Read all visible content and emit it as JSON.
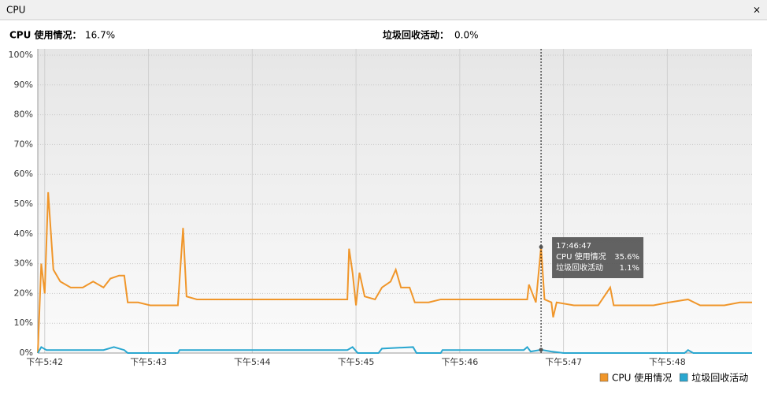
{
  "tab": {
    "title": "CPU",
    "close": "×"
  },
  "header": {
    "cpu_label": "CPU 使用情况：",
    "cpu_value": "16.7%",
    "gc_label": "垃圾回收活动：",
    "gc_value": "0.0%"
  },
  "tooltip": {
    "time": "17:46:47",
    "cpu_label": "CPU 使用情况",
    "cpu_value": "35.6%",
    "gc_label": "垃圾回收活动",
    "gc_value": "1.1%"
  },
  "chart_data": {
    "type": "line",
    "grid": true,
    "legend": "bottom-right",
    "xlim": [
      -4,
      409
    ],
    "ylim": [
      0,
      100
    ],
    "xticks": [
      {
        "value": 0,
        "label": "下午5:42"
      },
      {
        "value": 60,
        "label": "下午5:43"
      },
      {
        "value": 120,
        "label": "下午5:44"
      },
      {
        "value": 180,
        "label": "下午5:45"
      },
      {
        "value": 240,
        "label": "下午5:46"
      },
      {
        "value": 300,
        "label": "下午5:47"
      },
      {
        "value": 360,
        "label": "下午5:48"
      }
    ],
    "yticks": [
      {
        "value": 0,
        "label": "0%"
      },
      {
        "value": 10,
        "label": "10%"
      },
      {
        "value": 20,
        "label": "20%"
      },
      {
        "value": 30,
        "label": "30%"
      },
      {
        "value": 40,
        "label": "40%"
      },
      {
        "value": 50,
        "label": "50%"
      },
      {
        "value": 60,
        "label": "60%"
      },
      {
        "value": 70,
        "label": "70%"
      },
      {
        "value": 80,
        "label": "80%"
      },
      {
        "value": 90,
        "label": "90%"
      },
      {
        "value": 100,
        "label": "100%"
      }
    ],
    "series": [
      {
        "name": "CPU 使用情况",
        "color": "#f0962a",
        "x": [
          -4,
          -2,
          0,
          2,
          5,
          9,
          15,
          22,
          28,
          34,
          38,
          43,
          46,
          48,
          54,
          61,
          70,
          77,
          80,
          82,
          88,
          102,
          115,
          129,
          143,
          156,
          170,
          175,
          176,
          178,
          180,
          182,
          185,
          191,
          195,
          200,
          203,
          206,
          211,
          214,
          222,
          229,
          238,
          247,
          261,
          275,
          279,
          280,
          284,
          287,
          289,
          293,
          294,
          296,
          306,
          320,
          327,
          329,
          338,
          352,
          361,
          372,
          379,
          393,
          402,
          409
        ],
        "values": [
          0,
          30,
          20,
          54,
          28,
          24,
          22,
          22,
          24,
          22,
          25,
          26,
          26,
          17,
          17,
          16,
          16,
          16,
          42,
          19,
          18,
          18,
          18,
          18,
          18,
          18,
          18,
          18,
          35,
          27,
          16,
          27,
          19,
          18,
          22,
          24,
          28,
          22,
          22,
          17,
          17,
          18,
          18,
          18,
          18,
          18,
          18,
          23,
          17,
          35.6,
          18,
          17,
          12,
          17,
          16,
          16,
          22,
          16,
          16,
          16,
          17,
          18,
          16,
          16,
          17,
          17
        ]
      },
      {
        "name": "垃圾回收活动",
        "color": "#2aa7d0",
        "x": [
          -4,
          -2,
          1,
          20,
          34,
          40,
          46,
          48,
          77,
          78,
          156,
          175,
          178,
          181,
          193,
          195,
          213,
          215,
          229,
          230,
          277,
          279,
          281,
          287,
          293,
          300,
          370,
          372,
          375,
          409
        ],
        "values": [
          0,
          2,
          1,
          1,
          1,
          2,
          1,
          0,
          0,
          1,
          1,
          1,
          2,
          0,
          0,
          1.5,
          2,
          0,
          0,
          1,
          1,
          2,
          0.5,
          1.1,
          0.5,
          0,
          0,
          1,
          0,
          0
        ]
      }
    ]
  }
}
